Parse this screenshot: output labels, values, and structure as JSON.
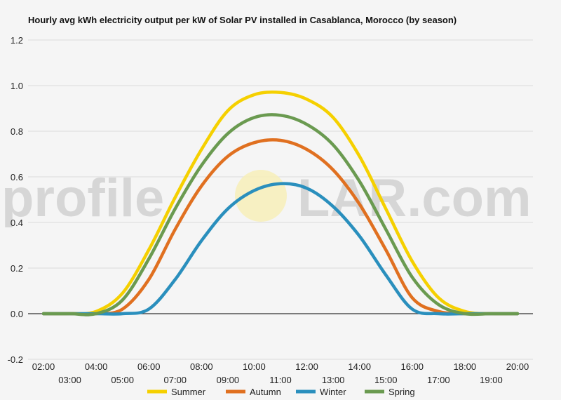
{
  "chart_data": {
    "type": "line",
    "title": "Hourly avg kWh electricity output per kW of Solar PV installed in Casablanca, Morocco (by season)",
    "xlabel": "",
    "ylabel": "",
    "ylim": [
      -0.2,
      1.2
    ],
    "yticks": [
      "1.2",
      "1.0",
      "0.8",
      "0.6",
      "0.4",
      "0.2",
      "0.0",
      "-0.2"
    ],
    "x": [
      "02:00",
      "03:00",
      "04:00",
      "05:00",
      "06:00",
      "07:00",
      "08:00",
      "09:00",
      "10:00",
      "11:00",
      "12:00",
      "13:00",
      "14:00",
      "15:00",
      "16:00",
      "17:00",
      "18:00",
      "19:00",
      "20:00"
    ],
    "grid": true,
    "legend_position": "bottom",
    "series": [
      {
        "name": "Summer",
        "color": "#f5d000",
        "values": [
          0.0,
          0.0,
          0.01,
          0.09,
          0.28,
          0.51,
          0.72,
          0.89,
          0.96,
          0.97,
          0.94,
          0.86,
          0.69,
          0.46,
          0.23,
          0.07,
          0.01,
          0.0,
          0.0
        ]
      },
      {
        "name": "Autumn",
        "color": "#e07020",
        "values": [
          0.0,
          0.0,
          0.0,
          0.02,
          0.15,
          0.37,
          0.56,
          0.69,
          0.75,
          0.76,
          0.72,
          0.63,
          0.48,
          0.28,
          0.07,
          0.01,
          0.0,
          0.0,
          0.0
        ]
      },
      {
        "name": "Winter",
        "color": "#2a8fbd",
        "values": [
          0.0,
          0.0,
          0.0,
          0.0,
          0.02,
          0.15,
          0.32,
          0.46,
          0.54,
          0.57,
          0.55,
          0.47,
          0.34,
          0.17,
          0.02,
          0.0,
          0.0,
          0.0,
          0.0
        ]
      },
      {
        "name": "Spring",
        "color": "#6a9a50",
        "values": [
          0.0,
          0.0,
          0.0,
          0.06,
          0.24,
          0.46,
          0.65,
          0.79,
          0.86,
          0.87,
          0.83,
          0.74,
          0.58,
          0.37,
          0.16,
          0.04,
          0.0,
          0.0,
          0.0
        ]
      }
    ]
  },
  "watermark": {
    "left": "profile",
    "right": "LAR.com"
  }
}
